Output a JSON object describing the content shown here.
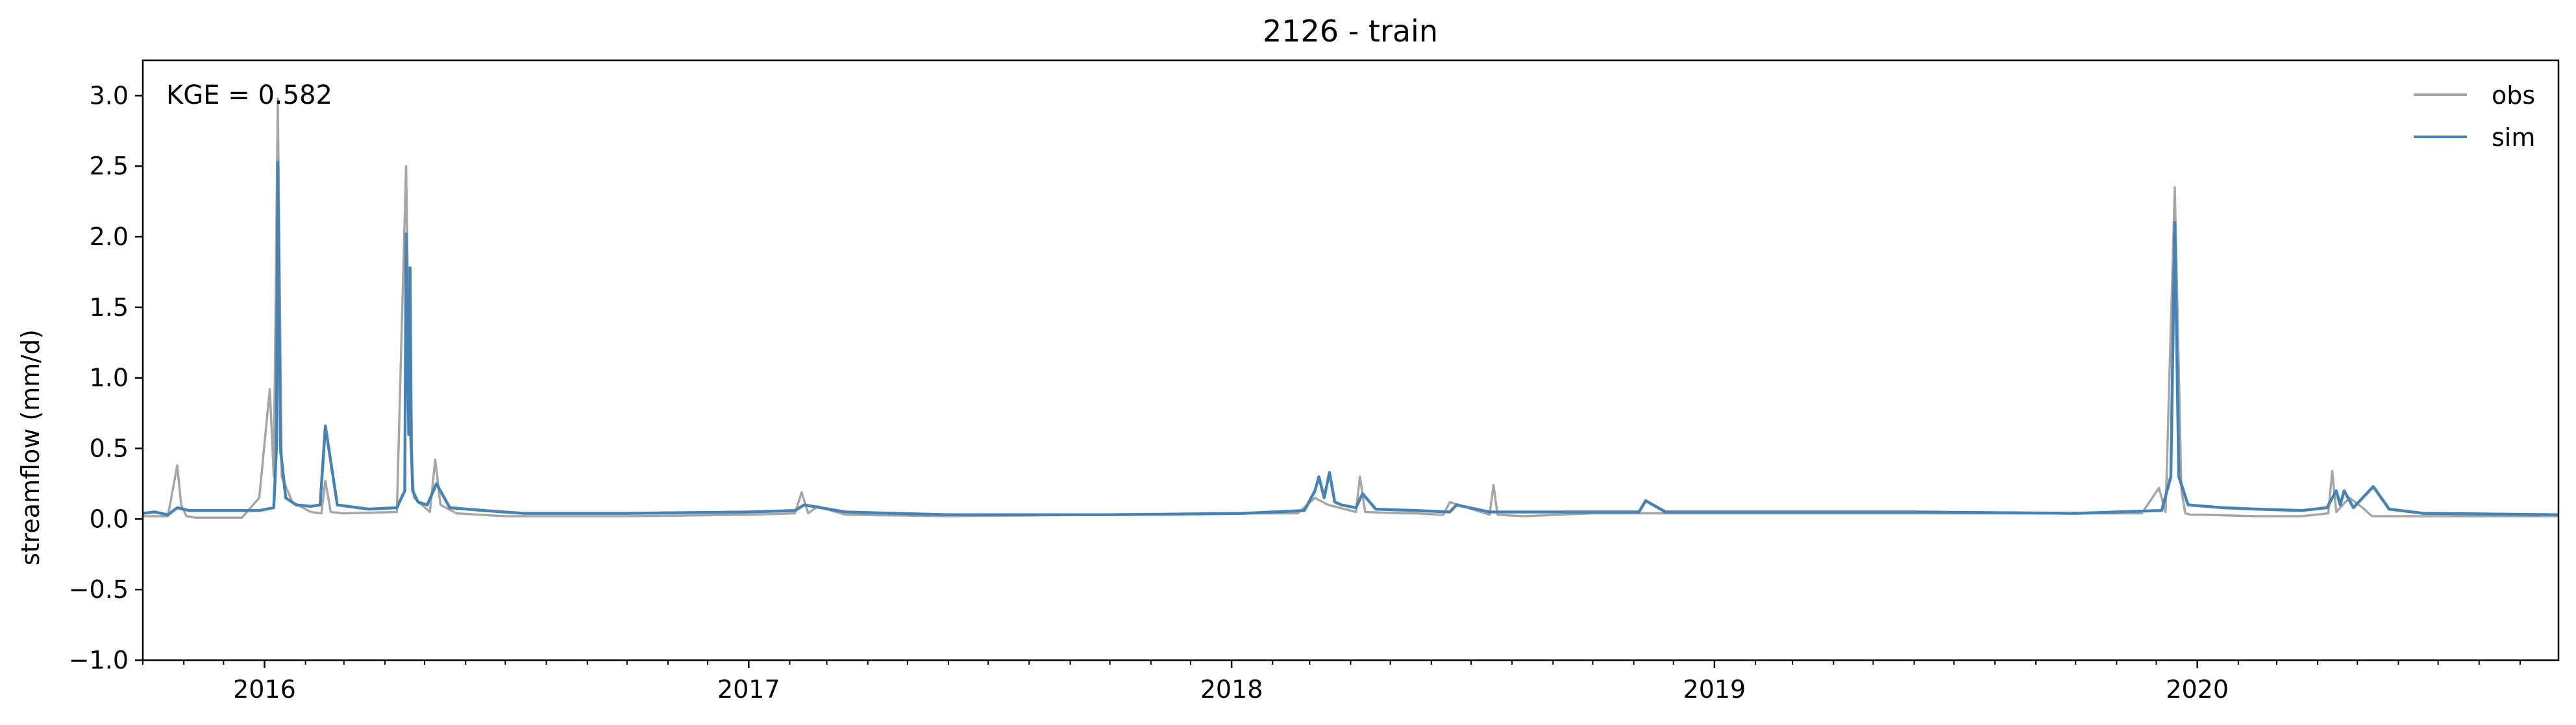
{
  "chart_data": {
    "type": "line",
    "title": "2126 - train",
    "xlabel": "",
    "ylabel": "streamflow (mm/d)",
    "xlim": [
      "2015-10-01",
      "2020-09-30"
    ],
    "ylim": [
      -1.0,
      3.25
    ],
    "x_ticks": [
      "2016",
      "2017",
      "2018",
      "2019",
      "2020"
    ],
    "y_ticks": [
      "−1.0",
      "−0.5",
      "0.0",
      "0.5",
      "1.0",
      "1.5",
      "2.0",
      "2.5",
      "3.0"
    ],
    "grid": false,
    "legend_position": "top-right",
    "annotation": "KGE = 0.582",
    "series": [
      {
        "name": "obs",
        "color": "#a6a6a6",
        "x": [
          "2015-10-01",
          "2015-10-20",
          "2015-10-27",
          "2015-10-30",
          "2015-11-03",
          "2015-11-10",
          "2015-12-15",
          "2015-12-28",
          "2016-01-05",
          "2016-01-08",
          "2016-01-11",
          "2016-01-14",
          "2016-01-22",
          "2016-02-05",
          "2016-02-13",
          "2016-02-16",
          "2016-02-20",
          "2016-03-01",
          "2016-04-10",
          "2016-04-17",
          "2016-04-20",
          "2016-04-23",
          "2016-05-05",
          "2016-05-09",
          "2016-05-13",
          "2016-05-25",
          "2016-07-01",
          "2016-10-01",
          "2017-01-01",
          "2017-02-05",
          "2017-02-10",
          "2017-02-15",
          "2017-02-22",
          "2017-03-15",
          "2017-06-01",
          "2017-10-01",
          "2018-01-10",
          "2018-02-20",
          "2018-03-05",
          "2018-03-15",
          "2018-04-05",
          "2018-04-08",
          "2018-04-12",
          "2018-05-10",
          "2018-05-20",
          "2018-06-10",
          "2018-06-15",
          "2018-07-15",
          "2018-07-18",
          "2018-07-21",
          "2018-08-10",
          "2018-10-01",
          "2019-01-01",
          "2019-06-01",
          "2019-10-01",
          "2019-11-20",
          "2019-12-03",
          "2019-12-08",
          "2019-12-15",
          "2019-12-20",
          "2019-12-23",
          "2019-12-27",
          "2020-01-05",
          "2020-02-15",
          "2020-03-20",
          "2020-04-09",
          "2020-04-12",
          "2020-04-15",
          "2020-04-25",
          "2020-05-05",
          "2020-05-12",
          "2020-06-10",
          "2020-09-30"
        ],
        "values": [
          0.02,
          0.02,
          0.38,
          0.1,
          0.02,
          0.01,
          0.01,
          0.15,
          0.92,
          0.3,
          2.98,
          0.3,
          0.12,
          0.05,
          0.04,
          0.27,
          0.05,
          0.04,
          0.05,
          2.5,
          0.6,
          0.15,
          0.05,
          0.42,
          0.1,
          0.04,
          0.02,
          0.02,
          0.03,
          0.04,
          0.19,
          0.04,
          0.09,
          0.03,
          0.02,
          0.03,
          0.04,
          0.04,
          0.15,
          0.1,
          0.05,
          0.3,
          0.05,
          0.04,
          0.04,
          0.03,
          0.12,
          0.03,
          0.24,
          0.03,
          0.02,
          0.04,
          0.04,
          0.04,
          0.04,
          0.04,
          0.22,
          0.05,
          2.35,
          0.2,
          0.04,
          0.03,
          0.03,
          0.02,
          0.02,
          0.04,
          0.34,
          0.05,
          0.15,
          0.08,
          0.02,
          0.02,
          0.02
        ]
      },
      {
        "name": "sim",
        "color": "#4682b4",
        "x": [
          "2015-10-01",
          "2015-10-10",
          "2015-10-20",
          "2015-10-27",
          "2015-11-05",
          "2015-12-01",
          "2015-12-28",
          "2016-01-08",
          "2016-01-10",
          "2016-01-11",
          "2016-01-13",
          "2016-01-17",
          "2016-01-25",
          "2016-02-05",
          "2016-02-12",
          "2016-02-16",
          "2016-02-25",
          "2016-03-20",
          "2016-04-10",
          "2016-04-16",
          "2016-04-17",
          "2016-04-19",
          "2016-04-20",
          "2016-04-21",
          "2016-04-22",
          "2016-04-26",
          "2016-05-03",
          "2016-05-10",
          "2016-05-20",
          "2016-06-15",
          "2016-07-15",
          "2016-10-01",
          "2017-01-01",
          "2017-02-05",
          "2017-02-12",
          "2017-03-15",
          "2017-06-01",
          "2017-10-01",
          "2018-01-10",
          "2018-02-25",
          "2018-03-05",
          "2018-03-08",
          "2018-03-12",
          "2018-03-16",
          "2018-03-20",
          "2018-03-25",
          "2018-04-05",
          "2018-04-10",
          "2018-04-20",
          "2018-05-20",
          "2018-06-15",
          "2018-06-20",
          "2018-07-15",
          "2018-09-01",
          "2018-11-05",
          "2018-11-10",
          "2018-11-25",
          "2019-01-01",
          "2019-06-01",
          "2019-10-01",
          "2019-11-01",
          "2019-12-05",
          "2019-12-12",
          "2019-12-15",
          "2019-12-18",
          "2019-12-25",
          "2020-01-20",
          "2020-02-15",
          "2020-03-20",
          "2020-04-08",
          "2020-04-15",
          "2020-04-18",
          "2020-04-21",
          "2020-04-28",
          "2020-05-13",
          "2020-05-25",
          "2020-06-20",
          "2020-09-30"
        ],
        "values": [
          0.04,
          0.05,
          0.03,
          0.08,
          0.06,
          0.06,
          0.06,
          0.08,
          0.5,
          2.53,
          0.5,
          0.15,
          0.1,
          0.09,
          0.1,
          0.66,
          0.1,
          0.07,
          0.08,
          0.2,
          2.02,
          0.6,
          1.78,
          0.5,
          0.2,
          0.12,
          0.1,
          0.25,
          0.08,
          0.06,
          0.04,
          0.04,
          0.05,
          0.06,
          0.1,
          0.05,
          0.03,
          0.03,
          0.04,
          0.06,
          0.2,
          0.3,
          0.15,
          0.33,
          0.12,
          0.1,
          0.08,
          0.18,
          0.07,
          0.06,
          0.05,
          0.1,
          0.05,
          0.05,
          0.05,
          0.13,
          0.05,
          0.05,
          0.05,
          0.04,
          0.05,
          0.06,
          0.3,
          2.1,
          0.3,
          0.1,
          0.08,
          0.07,
          0.06,
          0.08,
          0.2,
          0.1,
          0.2,
          0.08,
          0.23,
          0.07,
          0.04,
          0.03
        ]
      }
    ]
  }
}
